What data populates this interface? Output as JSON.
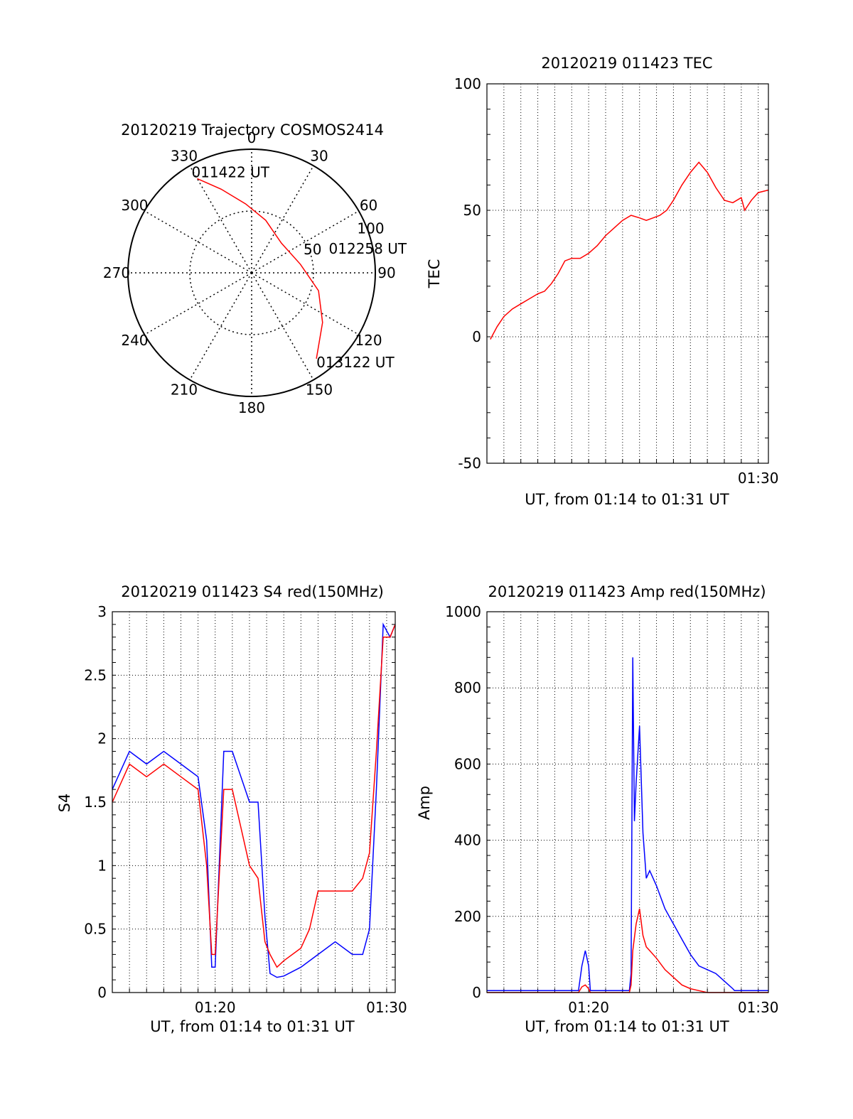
{
  "chart_data": [
    {
      "type": "polar",
      "title": "20120219 Trajectory COSMOS2414",
      "angle_labels": [
        "0",
        "30",
        "60",
        "90",
        "120",
        "150",
        "180",
        "210",
        "240",
        "270",
        "300",
        "330"
      ],
      "radius_labels": [
        "50",
        "100"
      ],
      "grid": true,
      "series": [
        {
          "color": "#ff0000",
          "points": [
            {
              "az": 330,
              "r": 88
            },
            {
              "az": 340,
              "r": 72
            },
            {
              "az": 355,
              "r": 56
            },
            {
              "az": 15,
              "r": 44
            },
            {
              "az": 45,
              "r": 34
            },
            {
              "az": 80,
              "r": 40
            },
            {
              "az": 105,
              "r": 56
            },
            {
              "az": 125,
              "r": 70
            },
            {
              "az": 143,
              "r": 87
            }
          ]
        }
      ],
      "annotations": [
        {
          "text": "011422 UT",
          "az": 330,
          "r": 88
        },
        {
          "text": "012258 UT",
          "az": 80,
          "r": 40
        },
        {
          "text": "013122 UT",
          "az": 143,
          "r": 87
        }
      ]
    },
    {
      "type": "line",
      "title": "20120219 011423 TEC",
      "xlabel": "UT, from 01:14 to 01:31 UT",
      "ylabel": "TEC",
      "xlim": [
        14.0,
        30.6
      ],
      "ylim": [
        -50,
        100
      ],
      "yticks": [
        -50,
        0,
        50,
        100
      ],
      "xticks": [
        {
          "value": 30,
          "label": "01:30"
        }
      ],
      "grid": true,
      "series": [
        {
          "color": "#ff0000",
          "x": [
            14.2,
            14.6,
            15.0,
            15.5,
            16.0,
            16.5,
            17.0,
            17.4,
            17.8,
            18.2,
            18.6,
            19.0,
            19.5,
            20.0,
            20.5,
            21.0,
            21.5,
            22.0,
            22.5,
            23.0,
            23.4,
            23.8,
            24.2,
            24.6,
            25.0,
            25.5,
            26.0,
            26.5,
            27.0,
            27.5,
            28.0,
            28.5,
            29.0,
            29.2,
            29.6,
            30.0,
            30.6
          ],
          "y": [
            -1,
            4,
            8,
            11,
            13,
            15,
            17,
            18,
            21,
            25,
            30,
            31,
            31,
            33,
            36,
            40,
            43,
            46,
            48,
            47,
            46,
            47,
            48,
            50,
            54,
            60,
            65,
            69,
            65,
            59,
            54,
            53,
            55,
            50,
            54,
            57,
            58
          ]
        }
      ]
    },
    {
      "type": "line",
      "title": "20120219 011423 S4 red(150MHz)",
      "xlabel": "UT, from 01:14 to 01:31 UT",
      "ylabel": "S4",
      "xlim": [
        14.0,
        30.5
      ],
      "ylim": [
        0,
        3
      ],
      "yticks": [
        0,
        0.5,
        1,
        1.5,
        2,
        2.5,
        3
      ],
      "xticks": [
        {
          "value": 20,
          "label": "01:20"
        },
        {
          "value": 30,
          "label": "01:30"
        }
      ],
      "grid": true,
      "series": [
        {
          "color": "#0000ff",
          "x": [
            14.0,
            15.0,
            16.0,
            17.0,
            18.0,
            19.0,
            19.5,
            19.8,
            20.0,
            20.5,
            21.0,
            21.5,
            22.0,
            22.5,
            22.9,
            23.2,
            23.6,
            24.0,
            25.0,
            26.0,
            27.0,
            28.0,
            28.6,
            29.0,
            29.4,
            29.8,
            30.2,
            30.5
          ],
          "y": [
            1.6,
            1.9,
            1.8,
            1.9,
            1.8,
            1.7,
            1.2,
            0.2,
            0.2,
            1.9,
            1.9,
            1.7,
            1.5,
            1.5,
            0.6,
            0.15,
            0.12,
            0.13,
            0.2,
            0.3,
            0.4,
            0.3,
            0.3,
            0.5,
            1.6,
            2.9,
            2.8,
            2.9
          ]
        },
        {
          "color": "#ff0000",
          "x": [
            14.0,
            15.0,
            16.0,
            17.0,
            18.0,
            19.0,
            19.5,
            19.8,
            20.0,
            20.5,
            21.0,
            21.5,
            22.0,
            22.5,
            22.9,
            23.2,
            23.6,
            24.0,
            25.0,
            25.5,
            26.0,
            27.0,
            28.0,
            28.6,
            29.0,
            29.4,
            29.8,
            30.2,
            30.5
          ],
          "y": [
            1.5,
            1.8,
            1.7,
            1.8,
            1.7,
            1.6,
            1.0,
            0.3,
            0.3,
            1.6,
            1.6,
            1.3,
            1.0,
            0.9,
            0.4,
            0.3,
            0.2,
            0.25,
            0.35,
            0.5,
            0.8,
            0.8,
            0.8,
            0.9,
            1.1,
            1.9,
            2.8,
            2.8,
            2.9
          ]
        }
      ]
    },
    {
      "type": "line",
      "title": "20120219 011423 Amp red(150MHz)",
      "xlabel": "UT, from 01:14 to 01:31 UT",
      "ylabel": "Amp",
      "xlim": [
        14.0,
        30.6
      ],
      "ylim": [
        0,
        1000
      ],
      "yticks": [
        0,
        200,
        400,
        600,
        800,
        1000
      ],
      "xticks": [
        {
          "value": 20,
          "label": "01:20"
        },
        {
          "value": 30,
          "label": "01:30"
        }
      ],
      "grid": true,
      "series": [
        {
          "color": "#0000ff",
          "x": [
            14.0,
            19.0,
            19.4,
            19.6,
            19.8,
            20.0,
            20.1,
            22.4,
            22.5,
            22.6,
            22.7,
            22.8,
            23.0,
            23.2,
            23.4,
            23.6,
            24.0,
            24.5,
            25.0,
            25.5,
            26.0,
            26.5,
            27.0,
            27.5,
            28.0,
            28.5,
            28.6,
            30.6
          ],
          "y": [
            5,
            5,
            5,
            70,
            110,
            70,
            5,
            5,
            50,
            880,
            450,
            550,
            700,
            420,
            300,
            320,
            280,
            220,
            180,
            140,
            100,
            70,
            60,
            50,
            30,
            10,
            5,
            5
          ]
        },
        {
          "color": "#ff0000",
          "x": [
            14.0,
            19.4,
            19.6,
            19.8,
            20.0,
            20.1,
            22.4,
            22.5,
            22.6,
            22.8,
            23.0,
            23.2,
            23.4,
            23.6,
            24.0,
            24.5,
            25.0,
            25.5,
            26.0,
            26.5,
            27.0,
            30.6
          ],
          "y": [
            0,
            0,
            15,
            20,
            10,
            0,
            0,
            20,
            110,
            180,
            220,
            150,
            120,
            110,
            90,
            60,
            40,
            20,
            10,
            5,
            0,
            0
          ]
        }
      ]
    }
  ]
}
